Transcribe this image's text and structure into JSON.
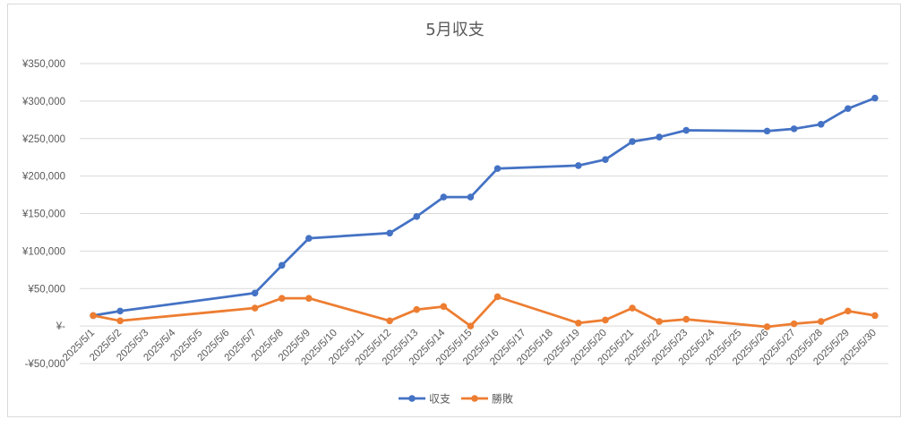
{
  "chart_data": {
    "type": "line",
    "title": "5月収支",
    "xlabel": "",
    "ylabel": "",
    "categories": [
      "2025/5/1",
      "2025/5/2",
      "2025/5/3",
      "2025/5/4",
      "2025/5/5",
      "2025/5/6",
      "2025/5/7",
      "2025/5/8",
      "2025/5/9",
      "2025/5/10",
      "2025/5/11",
      "2025/5/12",
      "2025/5/13",
      "2025/5/14",
      "2025/5/15",
      "2025/5/16",
      "2025/5/17",
      "2025/5/18",
      "2025/5/19",
      "2025/5/20",
      "2025/5/21",
      "2025/5/22",
      "2025/5/23",
      "2025/5/24",
      "2025/5/25",
      "2025/5/26",
      "2025/5/27",
      "2025/5/28",
      "2025/5/29",
      "2025/5/30"
    ],
    "ylim": [
      -50000,
      350000
    ],
    "yticks": [
      {
        "value": 350000,
        "label": "¥350,000"
      },
      {
        "value": 300000,
        "label": "¥300,000"
      },
      {
        "value": 250000,
        "label": "¥250,000"
      },
      {
        "value": 200000,
        "label": "¥200,000"
      },
      {
        "value": 150000,
        "label": "¥150,000"
      },
      {
        "value": 100000,
        "label": "¥100,000"
      },
      {
        "value": 50000,
        "label": "¥50,000"
      },
      {
        "value": 0,
        "label": "¥-"
      },
      {
        "value": -50000,
        "label": "-¥50,000"
      }
    ],
    "grid": true,
    "legend_position": "bottom",
    "series": [
      {
        "name": "収支",
        "color": "#4472c4",
        "values": [
          14000,
          20000,
          null,
          null,
          null,
          null,
          44000,
          81000,
          117000,
          null,
          null,
          124000,
          146000,
          172000,
          172000,
          210000,
          null,
          null,
          214000,
          222000,
          246000,
          252000,
          261000,
          null,
          null,
          260000,
          263000,
          269000,
          290000,
          304000
        ]
      },
      {
        "name": "勝敗",
        "color": "#ed7d31",
        "values": [
          14000,
          7000,
          null,
          null,
          null,
          null,
          24000,
          37000,
          37000,
          null,
          null,
          7000,
          22000,
          26000,
          0,
          39000,
          null,
          null,
          4000,
          8000,
          24000,
          6000,
          9000,
          null,
          null,
          -1000,
          3000,
          6000,
          20000,
          14000
        ]
      }
    ]
  }
}
